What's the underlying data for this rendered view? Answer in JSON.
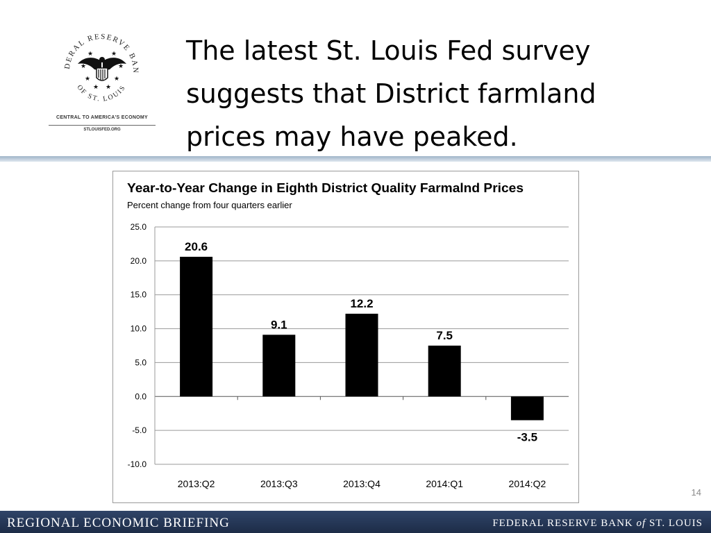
{
  "logo": {
    "ring_top": "FEDERAL RESERVE BANK",
    "ring_bottom": "OF ST. LOUIS",
    "tagline": "CENTRAL TO AMERICA'S ECONOMY",
    "url": "STLOUISFED.ORG"
  },
  "slide": {
    "title_lines": [
      "The latest St. Louis Fed survey",
      "suggests that District farmland",
      "prices may have peaked."
    ],
    "page_number": "14"
  },
  "footer": {
    "left": "REGIONAL ECONOMIC BRIEFING",
    "right_pre": "FEDERAL RESERVE BANK ",
    "right_of": "of",
    "right_post": " ST. LOUIS"
  },
  "chart_data": {
    "type": "bar",
    "title": "Year-to-Year Change in Eighth District Quality Farmalnd Prices",
    "subtitle": "Percent change from four quarters earlier",
    "categories": [
      "2013:Q2",
      "2013:Q3",
      "2013:Q4",
      "2014:Q1",
      "2014:Q2"
    ],
    "values": [
      20.6,
      9.1,
      12.2,
      7.5,
      -3.5
    ],
    "data_labels": [
      "20.6",
      "9.1",
      "12.2",
      "7.5",
      "-3.5"
    ],
    "yticks": [
      "25.0",
      "20.0",
      "15.0",
      "10.0",
      "5.0",
      "0.0",
      "-5.0",
      "-10.0"
    ],
    "ylim": [
      -10,
      25
    ],
    "grid": true,
    "bar_color": "#000000"
  }
}
